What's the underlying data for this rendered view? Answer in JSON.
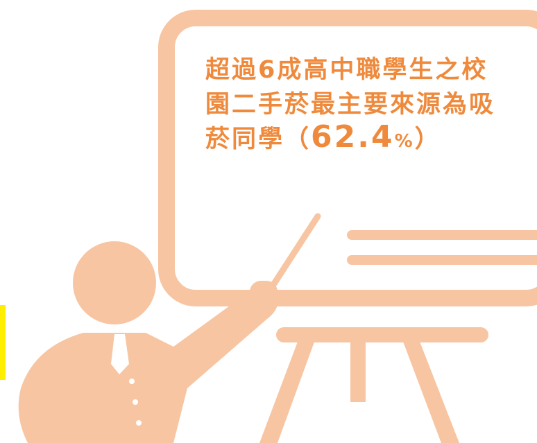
{
  "message": {
    "lines": [
      "超過6成高中職學生之校",
      "園二手菸最主要來源為吸"
    ],
    "last_line": {
      "prefix": "菸同學（",
      "value": 62.4,
      "unit": "%",
      "suffix": "）"
    }
  }
}
